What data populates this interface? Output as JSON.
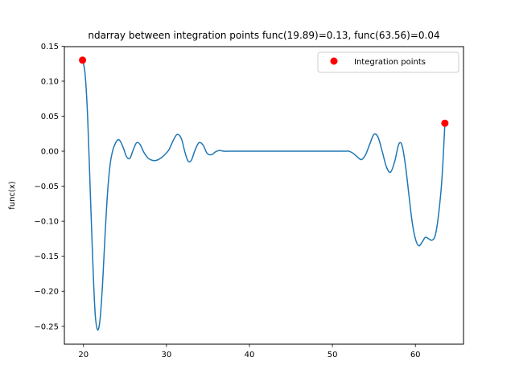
{
  "chart_data": {
    "type": "line",
    "title": "ndarray between integration points func(19.89)=0.13, func(63.56)=0.04",
    "xlabel": "",
    "ylabel": "func(x)",
    "xlim": [
      17.7,
      65.8
    ],
    "ylim": [
      -0.2755,
      0.1493
    ],
    "xticks": [
      20,
      30,
      40,
      50,
      60
    ],
    "xtick_labels": [
      "20",
      "30",
      "40",
      "50",
      "60"
    ],
    "yticks": [
      -0.25,
      -0.2,
      -0.15,
      -0.1,
      -0.05,
      0.0,
      0.05,
      0.1,
      0.15
    ],
    "ytick_labels": [
      "−0.25",
      "−0.20",
      "−0.15",
      "−0.10",
      "−0.05",
      "0.00",
      "0.05",
      "0.10",
      "0.15"
    ],
    "grid": false,
    "legend": {
      "position": "top-right",
      "entries": [
        "Integration points"
      ]
    },
    "colors": {
      "line": "#1f77b4",
      "points": "#ff0000"
    },
    "series": [
      {
        "type": "line",
        "x": [
          19.89,
          20.2,
          20.5,
          20.8,
          21.1,
          21.4,
          21.7,
          22.0,
          22.3,
          22.6,
          22.9,
          23.2,
          23.5,
          23.8,
          24.1,
          24.4,
          24.8,
          25.2,
          25.6,
          26.0,
          26.4,
          26.8,
          27.3,
          27.8,
          28.3,
          28.8,
          29.3,
          29.8,
          30.3,
          30.8,
          31.3,
          31.8,
          32.2,
          32.6,
          33.0,
          33.4,
          33.9,
          34.4,
          34.9,
          35.4,
          35.9,
          36.4,
          36.9,
          37.4,
          37.9,
          38.5,
          39.0,
          40.0,
          42.0,
          45.0,
          48.0,
          50.0,
          51.0,
          51.5,
          52.0,
          52.5,
          53.0,
          53.5,
          54.0,
          54.5,
          55.0,
          55.5,
          56.0,
          56.5,
          57.0,
          57.5,
          58.0,
          58.4,
          58.8,
          59.2,
          59.6,
          60.0,
          60.4,
          60.8,
          61.2,
          61.6,
          62.0,
          62.4,
          62.8,
          63.2,
          63.56
        ],
        "y": [
          0.13,
          0.11,
          0.05,
          -0.05,
          -0.15,
          -0.23,
          -0.255,
          -0.24,
          -0.19,
          -0.12,
          -0.06,
          -0.02,
          0.0,
          0.01,
          0.016,
          0.015,
          0.005,
          -0.008,
          -0.01,
          0.002,
          0.012,
          0.01,
          -0.002,
          -0.01,
          -0.013,
          -0.013,
          -0.01,
          -0.005,
          0.002,
          0.015,
          0.024,
          0.018,
          0.0,
          -0.014,
          -0.013,
          0.0,
          0.012,
          0.009,
          -0.003,
          -0.005,
          -0.001,
          0.001,
          0.0,
          0.0,
          0.0,
          0.0,
          0.0,
          0.0,
          0.0,
          0.0,
          0.0,
          0.0,
          0.0,
          0.0,
          0.0,
          -0.003,
          -0.008,
          -0.012,
          -0.005,
          0.01,
          0.024,
          0.02,
          0.0,
          -0.022,
          -0.03,
          -0.015,
          0.01,
          0.008,
          -0.02,
          -0.06,
          -0.1,
          -0.125,
          -0.135,
          -0.13,
          -0.123,
          -0.125,
          -0.127,
          -0.12,
          -0.09,
          -0.04,
          0.04
        ]
      },
      {
        "name": "Integration points",
        "type": "scatter",
        "x": [
          19.89,
          63.56
        ],
        "y": [
          0.13,
          0.04
        ]
      }
    ]
  }
}
